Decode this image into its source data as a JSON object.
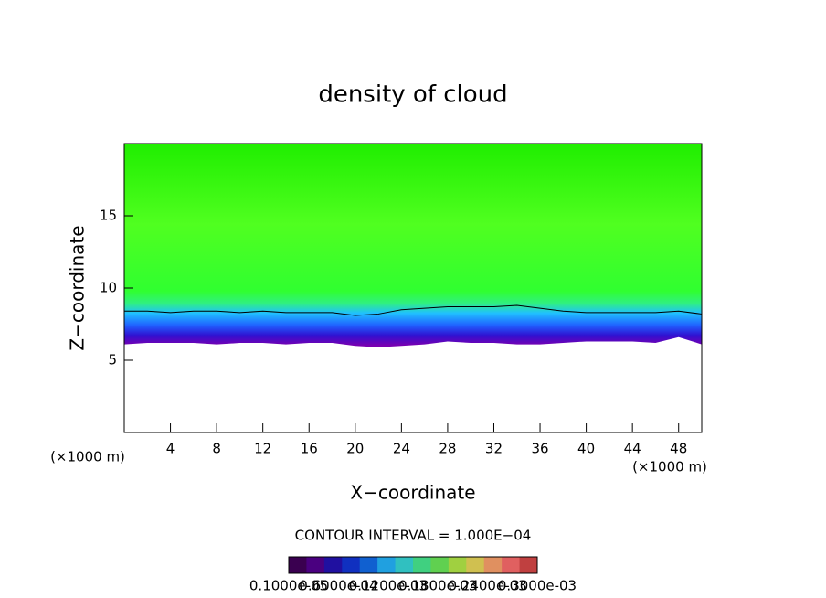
{
  "chart_data": {
    "type": "field",
    "title": "density of cloud",
    "x_label": "X−coordinate",
    "y_label": "Z−coordinate",
    "x_unit_label": "(×1000 m)",
    "y_unit_label": "(×1000 m)",
    "contour_interval": "CONTOUR INTERVAL = 1.000E−04",
    "xlim": [
      0,
      50
    ],
    "ylim": [
      0,
      20
    ],
    "xticks": [
      4,
      8,
      12,
      16,
      20,
      24,
      28,
      32,
      36,
      40,
      44,
      48
    ],
    "yticks": [
      5,
      10,
      15
    ],
    "x": [
      0,
      2,
      4,
      6,
      8,
      10,
      12,
      14,
      16,
      18,
      20,
      22,
      24,
      26,
      28,
      30,
      32,
      34,
      36,
      38,
      40,
      42,
      44,
      46,
      48,
      50
    ],
    "cloud_base": [
      6.1,
      6.2,
      6.2,
      6.2,
      6.1,
      6.2,
      6.2,
      6.1,
      6.2,
      6.2,
      6.0,
      5.9,
      6.0,
      6.1,
      6.3,
      6.2,
      6.2,
      6.1,
      6.1,
      6.2,
      6.3,
      6.3,
      6.3,
      6.2,
      6.6,
      6.1
    ],
    "contour_z": [
      8.4,
      8.4,
      8.3,
      8.4,
      8.4,
      8.3,
      8.4,
      8.3,
      8.3,
      8.3,
      8.1,
      8.2,
      8.5,
      8.6,
      8.7,
      8.7,
      8.7,
      8.8,
      8.6,
      8.4,
      8.3,
      8.3,
      8.3,
      8.3,
      8.4,
      8.2
    ],
    "colorbar": {
      "colors": [
        "#3a0050",
        "#4a0080",
        "#2010a0",
        "#1030c0",
        "#1060d0",
        "#20a0e0",
        "#30c0c0",
        "#40d080",
        "#60d050",
        "#a0d040",
        "#d0c050",
        "#e09060",
        "#e06060",
        "#c04040"
      ],
      "labels": [
        "0.1000e-05",
        "0.6000e-04",
        "0.1200e-03",
        "0.1800e-03",
        "0.2400e-03",
        "0.3000e-03"
      ]
    }
  }
}
